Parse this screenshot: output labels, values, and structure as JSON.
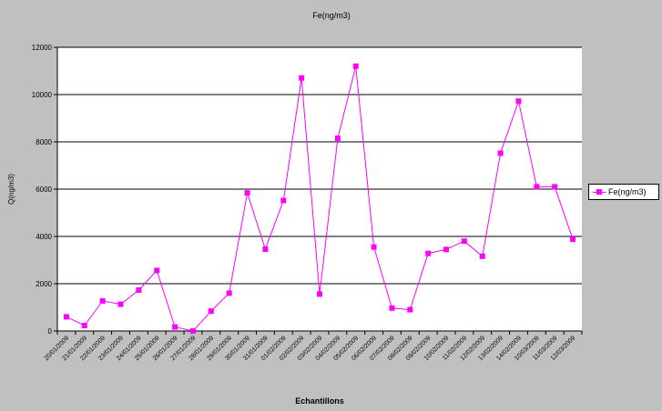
{
  "chart_data": {
    "type": "line",
    "title": "Fe(ng/m3)",
    "xlabel": "Echantillons",
    "ylabel": "Q(ng/m3)",
    "ylim": [
      0,
      12000
    ],
    "yticks": [
      0,
      2000,
      4000,
      6000,
      8000,
      10000,
      12000
    ],
    "grid": true,
    "legend_position": "right",
    "categories": [
      "20/01/2009",
      "21/01/2009",
      "22/01/2009",
      "23/01/2009",
      "24/01/2009",
      "25/01/2009",
      "26/01/2009",
      "27/01/2009",
      "28/01/2009",
      "29/01/2009",
      "30/01/2009",
      "31/01/2009",
      "01/02/2009",
      "02/02/2009",
      "03/02/2009",
      "04/02/2009",
      "05/02/2009",
      "06/02/2009",
      "07/02/2009",
      "08/02/2009",
      "09/02/2009",
      "10/02/2009",
      "11/02/2009",
      "12/02/2009",
      "13/02/2009",
      "14/02/2009",
      "10/03/2009",
      "11/03/2009",
      "12/03/2009"
    ],
    "series": [
      {
        "name": "Fe(ng/m3)",
        "color": "#ff00ff",
        "values": [
          600,
          230,
          1270,
          1130,
          1730,
          2560,
          170,
          0,
          840,
          1600,
          5840,
          3460,
          5520,
          10700,
          1560,
          8150,
          11200,
          3550,
          970,
          900,
          3280,
          3450,
          3800,
          3160,
          7520,
          9720,
          6100,
          6100,
          3880
        ]
      }
    ]
  }
}
